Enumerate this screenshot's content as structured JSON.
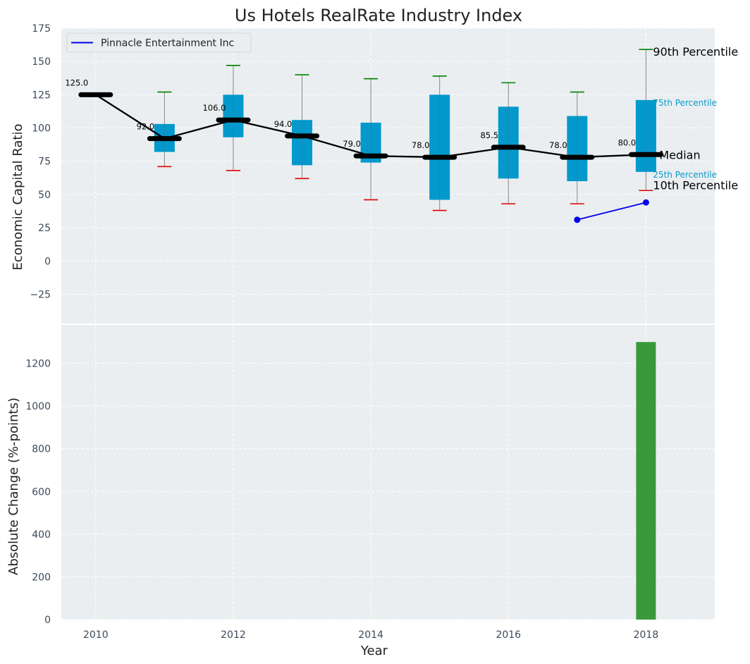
{
  "chart_data": [
    {
      "type": "box",
      "title": "Us Hotels RealRate Industry Index",
      "xlabel": "",
      "ylabel": "Economic Capital Ratio",
      "xlim": [
        2009.5,
        2019
      ],
      "ylim": [
        -47,
        175
      ],
      "yticks": [
        -25,
        0,
        25,
        50,
        75,
        100,
        125,
        150,
        175
      ],
      "ytick_labels": [
        "−25",
        "0",
        "25",
        "50",
        "75",
        "100",
        "125",
        "150",
        "175"
      ],
      "grid": true,
      "legend_position": "top-left",
      "colors": {
        "box": "#0399cc",
        "median_line": "#000000",
        "whisker_top": "#008000",
        "whisker_bottom": "#e00000",
        "company_line": "#0000ee",
        "whisker_stem": "#888888",
        "percentile_label": "#0b9ac9"
      },
      "years": [
        2010,
        2011,
        2012,
        2013,
        2014,
        2015,
        2016,
        2017,
        2018
      ],
      "median": [
        125.0,
        92.0,
        106.0,
        94.0,
        79.0,
        78.0,
        85.5,
        78.0,
        80.0
      ],
      "median_labels": [
        "125.0",
        "92.0",
        "106.0",
        "94.0",
        "79.0",
        "78.0",
        "85.5",
        "78.0",
        "80.0"
      ],
      "p10": [
        null,
        71,
        68,
        62,
        46,
        38,
        43,
        43,
        53
      ],
      "p25": [
        null,
        82,
        93,
        72,
        74,
        46,
        62,
        60,
        67
      ],
      "p75": [
        null,
        103,
        125,
        106,
        104,
        125,
        116,
        109,
        121
      ],
      "p90": [
        null,
        127,
        147,
        140,
        137,
        139,
        134,
        127,
        159
      ],
      "company_series": {
        "name": "Pinnacle Entertainment Inc",
        "x": [
          2017,
          2018
        ],
        "y": [
          31,
          44
        ]
      },
      "annotations": {
        "p90": "90th Percentile",
        "p75": "75th Percentile",
        "median": "Median",
        "p25": "25th Percentile",
        "p10": "10th Percentile"
      }
    },
    {
      "type": "bar",
      "xlabel": "Year",
      "ylabel": "Absolute Change (%-points)",
      "xlim": [
        2009.5,
        2019
      ],
      "ylim": [
        0,
        1380
      ],
      "yticks": [
        0,
        200,
        400,
        600,
        800,
        1000,
        1200
      ],
      "xticks": [
        2010,
        2012,
        2014,
        2016,
        2018
      ],
      "x": [
        2018
      ],
      "values": [
        1300
      ],
      "color": "#3a9a3a",
      "grid": true
    }
  ]
}
